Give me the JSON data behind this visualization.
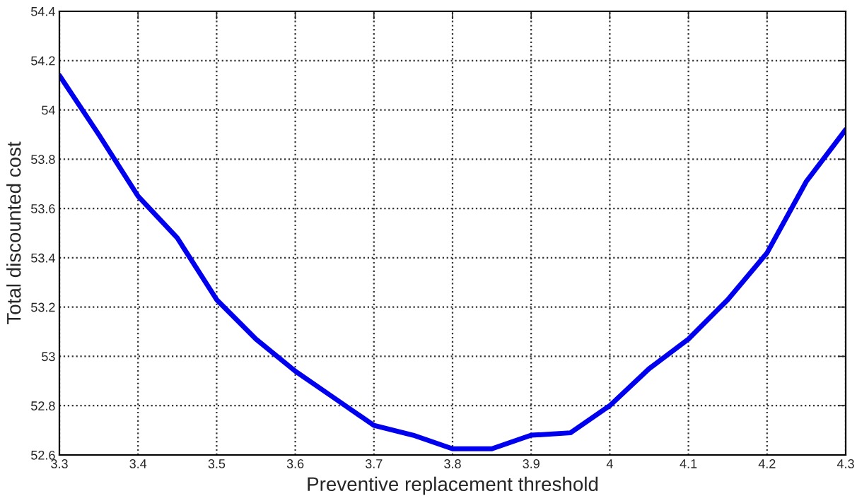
{
  "chart_data": {
    "type": "line",
    "xlabel": "Preventive replacement threshold",
    "ylabel": "Total discounted cost",
    "x": [
      3.3,
      3.35,
      3.4,
      3.45,
      3.5,
      3.55,
      3.6,
      3.65,
      3.7,
      3.75,
      3.8,
      3.85,
      3.9,
      3.95,
      4.0,
      4.05,
      4.1,
      4.15,
      4.2,
      4.25,
      4.3
    ],
    "series": [
      {
        "color": "#0000ee",
        "values": [
          54.14,
          53.9,
          53.65,
          53.48,
          53.23,
          53.07,
          52.94,
          52.83,
          52.72,
          52.68,
          52.625,
          52.625,
          52.68,
          52.69,
          52.8,
          52.95,
          53.07,
          53.23,
          53.42,
          53.71,
          53.92
        ]
      }
    ],
    "xlim": [
      3.3,
      4.3
    ],
    "ylim": [
      52.6,
      54.4
    ],
    "xticks": [
      3.3,
      3.4,
      3.5,
      3.6,
      3.7,
      3.8,
      3.9,
      4,
      4.1,
      4.2,
      4.3
    ],
    "yticks": [
      52.6,
      52.8,
      53,
      53.2,
      53.4,
      53.6,
      53.8,
      54,
      54.2,
      54.4
    ],
    "grid": true,
    "marker": "none",
    "line_style": "solid"
  }
}
